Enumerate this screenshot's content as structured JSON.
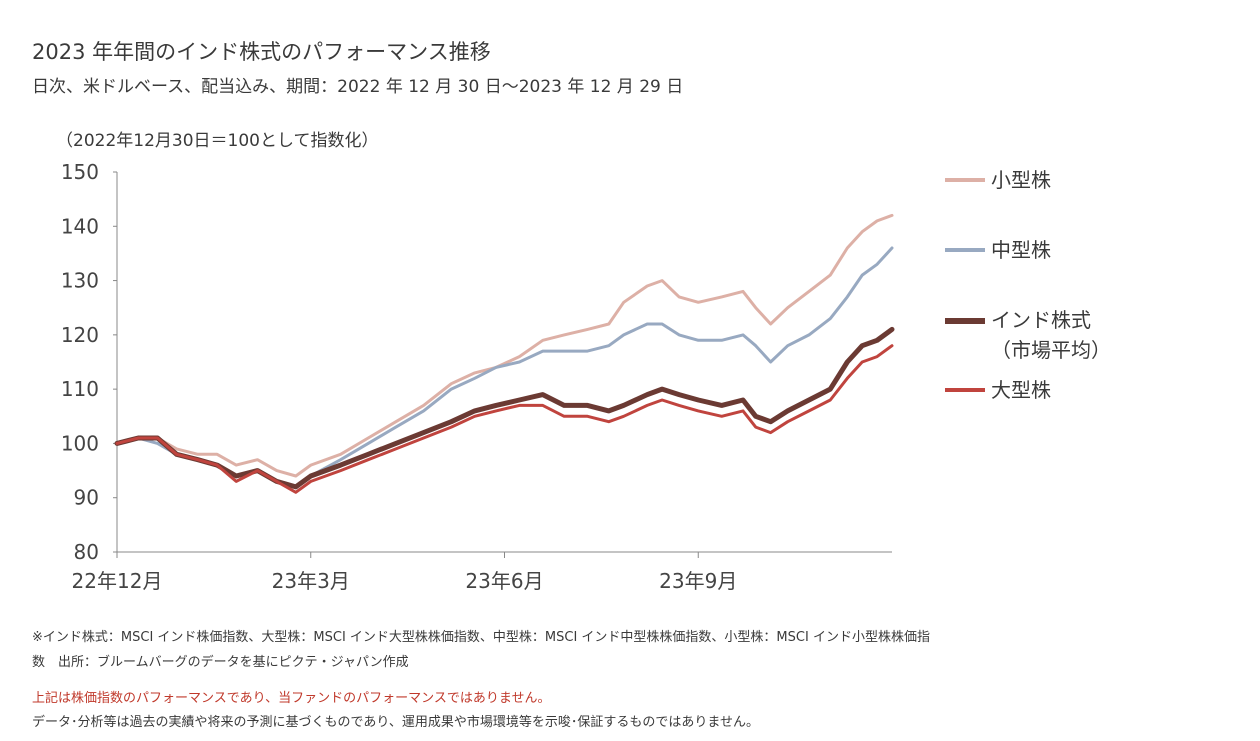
{
  "title": "2023 年年間のインド株式のパフォーマンス推移",
  "subtitle": "日次、米ドルベース、配当込み、期間：2022 年 12 月 30 日～2023 年 12 月 29 日",
  "axis_note": "（2022年12月30日＝100として指数化）",
  "footnotes": {
    "line1": "※インド株式：MSCI インド株価指数、大型株：MSCI インド大型株株価指数、中型株：MSCI インド中型株株価指数、小型株：MSCI インド小型株株価指",
    "line2": "数　出所：ブルームバーグのデータを基にピクテ・ジャパン作成",
    "disclaimer_red": "上記は株価指数のパフォーマンスであり、当ファンドのパフォーマンスではありません。",
    "disclaimer": "データ･分析等は過去の実績や将来の予測に基づくものであり、運用成果や市場環境等を示唆･保証するものではありません。"
  },
  "chart_data": {
    "type": "line",
    "ylim": [
      80,
      150
    ],
    "yticks": [
      80,
      90,
      100,
      110,
      120,
      130,
      140,
      150
    ],
    "xlim": [
      "2022-12-30",
      "2023-12-29"
    ],
    "xticks": [
      {
        "date": "2022-12-30",
        "label": "22年12月"
      },
      {
        "date": "2023-03-31",
        "label": "23年3月"
      },
      {
        "date": "2023-06-30",
        "label": "23年6月"
      },
      {
        "date": "2023-09-29",
        "label": "23年9月"
      }
    ],
    "grid": false,
    "legend_position": "right",
    "series": [
      {
        "name": "小型株",
        "color": "#ddb0a6",
        "width": 3,
        "points": [
          [
            "2022-12-30",
            100
          ],
          [
            "2023-01-09",
            101
          ],
          [
            "2023-01-18",
            101
          ],
          [
            "2023-01-27",
            99
          ],
          [
            "2023-02-06",
            98
          ],
          [
            "2023-02-15",
            98
          ],
          [
            "2023-02-24",
            96
          ],
          [
            "2023-03-06",
            97
          ],
          [
            "2023-03-15",
            95
          ],
          [
            "2023-03-24",
            94
          ],
          [
            "2023-03-31",
            96
          ],
          [
            "2023-04-14",
            98
          ],
          [
            "2023-04-27",
            101
          ],
          [
            "2023-05-10",
            104
          ],
          [
            "2023-05-23",
            107
          ],
          [
            "2023-06-05",
            111
          ],
          [
            "2023-06-16",
            113
          ],
          [
            "2023-06-26",
            114
          ],
          [
            "2023-07-07",
            116
          ],
          [
            "2023-07-18",
            119
          ],
          [
            "2023-07-28",
            120
          ],
          [
            "2023-08-08",
            121
          ],
          [
            "2023-08-18",
            122
          ],
          [
            "2023-08-25",
            126
          ],
          [
            "2023-09-05",
            129
          ],
          [
            "2023-09-12",
            130
          ],
          [
            "2023-09-20",
            127
          ],
          [
            "2023-09-29",
            126
          ],
          [
            "2023-10-10",
            127
          ],
          [
            "2023-10-20",
            128
          ],
          [
            "2023-10-26",
            125
          ],
          [
            "2023-11-02",
            122
          ],
          [
            "2023-11-10",
            125
          ],
          [
            "2023-11-20",
            128
          ],
          [
            "2023-11-30",
            131
          ],
          [
            "2023-12-08",
            136
          ],
          [
            "2023-12-15",
            139
          ],
          [
            "2023-12-22",
            141
          ],
          [
            "2023-12-29",
            142
          ]
        ]
      },
      {
        "name": "中型株",
        "color": "#98a9c1",
        "width": 3,
        "points": [
          [
            "2022-12-30",
            100
          ],
          [
            "2023-01-09",
            101
          ],
          [
            "2023-01-18",
            100
          ],
          [
            "2023-01-27",
            98
          ],
          [
            "2023-02-06",
            97
          ],
          [
            "2023-02-15",
            96
          ],
          [
            "2023-02-24",
            94
          ],
          [
            "2023-03-06",
            95
          ],
          [
            "2023-03-15",
            93
          ],
          [
            "2023-03-24",
            92
          ],
          [
            "2023-03-31",
            94
          ],
          [
            "2023-04-14",
            97
          ],
          [
            "2023-04-27",
            100
          ],
          [
            "2023-05-10",
            103
          ],
          [
            "2023-05-23",
            106
          ],
          [
            "2023-06-05",
            110
          ],
          [
            "2023-06-16",
            112
          ],
          [
            "2023-06-26",
            114
          ],
          [
            "2023-07-07",
            115
          ],
          [
            "2023-07-18",
            117
          ],
          [
            "2023-07-28",
            117
          ],
          [
            "2023-08-08",
            117
          ],
          [
            "2023-08-18",
            118
          ],
          [
            "2023-08-25",
            120
          ],
          [
            "2023-09-05",
            122
          ],
          [
            "2023-09-12",
            122
          ],
          [
            "2023-09-20",
            120
          ],
          [
            "2023-09-29",
            119
          ],
          [
            "2023-10-10",
            119
          ],
          [
            "2023-10-20",
            120
          ],
          [
            "2023-10-26",
            118
          ],
          [
            "2023-11-02",
            115
          ],
          [
            "2023-11-10",
            118
          ],
          [
            "2023-11-20",
            120
          ],
          [
            "2023-11-30",
            123
          ],
          [
            "2023-12-08",
            127
          ],
          [
            "2023-12-15",
            131
          ],
          [
            "2023-12-22",
            133
          ],
          [
            "2023-12-29",
            136
          ]
        ]
      },
      {
        "name": "インド株式\n（市場平均）",
        "color": "#6b3a33",
        "width": 5,
        "points": [
          [
            "2022-12-30",
            100
          ],
          [
            "2023-01-09",
            101
          ],
          [
            "2023-01-18",
            101
          ],
          [
            "2023-01-27",
            98
          ],
          [
            "2023-02-06",
            97
          ],
          [
            "2023-02-15",
            96
          ],
          [
            "2023-02-24",
            94
          ],
          [
            "2023-03-06",
            95
          ],
          [
            "2023-03-15",
            93
          ],
          [
            "2023-03-24",
            92
          ],
          [
            "2023-03-31",
            94
          ],
          [
            "2023-04-14",
            96
          ],
          [
            "2023-04-27",
            98
          ],
          [
            "2023-05-10",
            100
          ],
          [
            "2023-05-23",
            102
          ],
          [
            "2023-06-05",
            104
          ],
          [
            "2023-06-16",
            106
          ],
          [
            "2023-06-26",
            107
          ],
          [
            "2023-07-07",
            108
          ],
          [
            "2023-07-18",
            109
          ],
          [
            "2023-07-28",
            107
          ],
          [
            "2023-08-08",
            107
          ],
          [
            "2023-08-18",
            106
          ],
          [
            "2023-08-25",
            107
          ],
          [
            "2023-09-05",
            109
          ],
          [
            "2023-09-12",
            110
          ],
          [
            "2023-09-20",
            109
          ],
          [
            "2023-09-29",
            108
          ],
          [
            "2023-10-10",
            107
          ],
          [
            "2023-10-20",
            108
          ],
          [
            "2023-10-26",
            105
          ],
          [
            "2023-11-02",
            104
          ],
          [
            "2023-11-10",
            106
          ],
          [
            "2023-11-20",
            108
          ],
          [
            "2023-11-30",
            110
          ],
          [
            "2023-12-08",
            115
          ],
          [
            "2023-12-15",
            118
          ],
          [
            "2023-12-22",
            119
          ],
          [
            "2023-12-29",
            121
          ]
        ]
      },
      {
        "name": "大型株",
        "color": "#c0443e",
        "width": 3,
        "points": [
          [
            "2022-12-30",
            100
          ],
          [
            "2023-01-09",
            101
          ],
          [
            "2023-01-18",
            101
          ],
          [
            "2023-01-27",
            98
          ],
          [
            "2023-02-06",
            97
          ],
          [
            "2023-02-15",
            96
          ],
          [
            "2023-02-24",
            93
          ],
          [
            "2023-03-06",
            95
          ],
          [
            "2023-03-15",
            93
          ],
          [
            "2023-03-24",
            91
          ],
          [
            "2023-03-31",
            93
          ],
          [
            "2023-04-14",
            95
          ],
          [
            "2023-04-27",
            97
          ],
          [
            "2023-05-10",
            99
          ],
          [
            "2023-05-23",
            101
          ],
          [
            "2023-06-05",
            103
          ],
          [
            "2023-06-16",
            105
          ],
          [
            "2023-06-26",
            106
          ],
          [
            "2023-07-07",
            107
          ],
          [
            "2023-07-18",
            107
          ],
          [
            "2023-07-28",
            105
          ],
          [
            "2023-08-08",
            105
          ],
          [
            "2023-08-18",
            104
          ],
          [
            "2023-08-25",
            105
          ],
          [
            "2023-09-05",
            107
          ],
          [
            "2023-09-12",
            108
          ],
          [
            "2023-09-20",
            107
          ],
          [
            "2023-09-29",
            106
          ],
          [
            "2023-10-10",
            105
          ],
          [
            "2023-10-20",
            106
          ],
          [
            "2023-10-26",
            103
          ],
          [
            "2023-11-02",
            102
          ],
          [
            "2023-11-10",
            104
          ],
          [
            "2023-11-20",
            106
          ],
          [
            "2023-11-30",
            108
          ],
          [
            "2023-12-08",
            112
          ],
          [
            "2023-12-15",
            115
          ],
          [
            "2023-12-22",
            116
          ],
          [
            "2023-12-29",
            118
          ]
        ]
      }
    ]
  }
}
